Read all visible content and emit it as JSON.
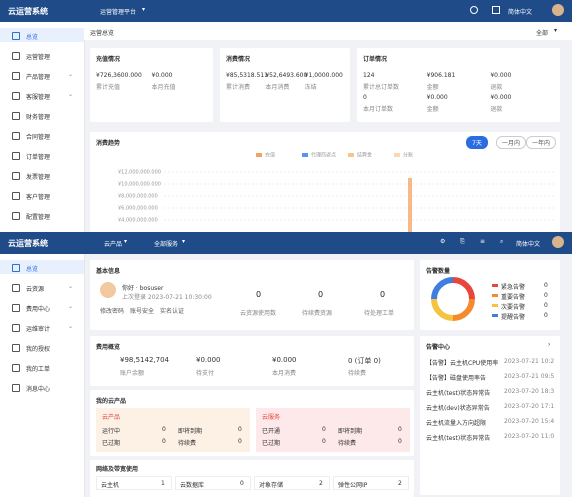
{
  "top": {
    "header": {
      "brand": "云运营系统",
      "menu": "运营管理平台",
      "lang": "简体中文"
    },
    "sidebar": [
      {
        "label": "总览",
        "active": true
      },
      {
        "label": "运营管理"
      },
      {
        "label": "产品管理",
        "submenu": true
      },
      {
        "label": "客服管理",
        "submenu": true
      },
      {
        "label": "财务管理"
      },
      {
        "label": "合同管理"
      },
      {
        "label": "订单管理"
      },
      {
        "label": "发票管理"
      },
      {
        "label": "客户管理"
      },
      {
        "label": "配置管理"
      }
    ],
    "breadcrumb": "运营总览",
    "filter": "全部",
    "recharge": {
      "title": "充值情况",
      "items": [
        {
          "value": "¥726,3600.000",
          "label": "累计充值"
        },
        {
          "value": "¥0.000",
          "label": "本月充值"
        }
      ]
    },
    "consume": {
      "title": "消费情况",
      "items": [
        {
          "value": "¥85,5318.511",
          "label": "累计消费"
        },
        {
          "value": "¥52,6493.600",
          "label": "本月消费"
        },
        {
          "value": "¥1,0000.000",
          "label": "冻结"
        }
      ]
    },
    "orders": {
      "title": "订单情况",
      "items": [
        {
          "value": "124",
          "label": "累计总订单数"
        },
        {
          "value": "¥906.181",
          "label": "金额"
        },
        {
          "value": "¥0.000",
          "label": "退款"
        },
        {
          "value": "0",
          "label": "本月订单数"
        },
        {
          "value": "¥0.000",
          "label": "金额"
        },
        {
          "value": "¥0.000",
          "label": "退款"
        }
      ]
    },
    "trend": {
      "title": "消费趋势",
      "tabs": [
        "7天",
        "一月内",
        "一年内"
      ],
      "legend": [
        {
          "name": "充值",
          "color": "#f5a25d"
        },
        {
          "name": "代理商返点",
          "color": "#5b8ff9"
        },
        {
          "name": "结算金",
          "color": "#f7c58f"
        },
        {
          "name": "分账",
          "color": "#f9d9b5"
        }
      ],
      "yticks": [
        {
          "value": 12000000,
          "label": "¥12,000,000.000"
        },
        {
          "value": 10000000,
          "label": "¥10,000,000.000"
        },
        {
          "value": 8000000,
          "label": "¥8,000,000.000"
        },
        {
          "value": 6000000,
          "label": "¥6,000,000.000"
        },
        {
          "value": 4000000,
          "label": "¥4,000,000.000"
        }
      ],
      "bar_value": 11000000,
      "bar_color": "#f7b98a"
    }
  },
  "bottom": {
    "header": {
      "brand": "云运营系统",
      "menu1": "云产品",
      "menu2": "全部服务",
      "lang": "简体中文"
    },
    "sidebar": [
      {
        "label": "总览",
        "active": true
      },
      {
        "label": "云资源",
        "submenu": true
      },
      {
        "label": "费用中心",
        "submenu": true
      },
      {
        "label": "运维审计",
        "submenu": true
      },
      {
        "label": "我的授权"
      },
      {
        "label": "我的工单"
      },
      {
        "label": "消息中心"
      }
    ],
    "basic": {
      "title": "基本信息",
      "greeting": "你好 · bosuser",
      "login": "上次登录 2023-07-21 10:30:00",
      "links": [
        "修改密码",
        "账号安全",
        "实名认证"
      ],
      "stats": [
        {
          "value": "0",
          "label": "云资源使用数"
        },
        {
          "value": "0",
          "label": "待续费资源"
        },
        {
          "value": "0",
          "label": "待处理工单"
        }
      ]
    },
    "alarm": {
      "title": "告警数量",
      "items": [
        {
          "name": "紧急告警",
          "value": "0",
          "color": "#e8453c"
        },
        {
          "name": "重要告警",
          "value": "0",
          "color": "#f58a2c"
        },
        {
          "name": "次要告警",
          "value": "0",
          "color": "#f5c342"
        },
        {
          "name": "提醒告警",
          "value": "0",
          "color": "#3f7de0"
        }
      ]
    },
    "fee": {
      "title": "费用概览",
      "items": [
        {
          "value": "¥98,5142,704",
          "label": "账户余额"
        },
        {
          "value": "¥0.000",
          "label": "待支付"
        },
        {
          "value": "¥0.000",
          "label": "本月消费"
        },
        {
          "value": "0 (订单 0)",
          "label": "待续费"
        }
      ]
    },
    "alarm_center": {
      "title": "告警中心",
      "items": [
        {
          "text": "【告警】云主机CPU使用率",
          "time": "2023-07-21 10:2"
        },
        {
          "text": "【告警】磁盘使用率告",
          "time": "2023-07-21 09:5"
        },
        {
          "text": "云主机(test)状态异常告",
          "time": "2023-07-20 18:3"
        },
        {
          "text": "云主机(dev)状态异常告",
          "time": "2023-07-20 17:1"
        },
        {
          "text": "云主机流量入方向超限",
          "time": "2023-07-20 15:4"
        },
        {
          "text": "云主机(test)状态异常告",
          "time": "2023-07-20 11:0"
        }
      ]
    },
    "products": {
      "title": "我的云产品",
      "panels": [
        {
          "title": "云产品",
          "bg": "#fdf1e6",
          "items": [
            {
              "label": "运行中",
              "value": "0"
            },
            {
              "label": "即将到期",
              "value": "0"
            },
            {
              "label": "已过期",
              "value": "0"
            },
            {
              "label": "待续费",
              "value": "0"
            }
          ]
        },
        {
          "title": "云服务",
          "bg": "#fde9ea",
          "items": [
            {
              "label": "已开通",
              "value": "0"
            },
            {
              "label": "即将到期",
              "value": "0"
            },
            {
              "label": "已过期",
              "value": "0"
            },
            {
              "label": "待续费",
              "value": "0"
            }
          ]
        }
      ]
    },
    "network": {
      "title": "网络及带宽使用",
      "items": [
        {
          "label": "云主机",
          "value": "1"
        },
        {
          "label": "云数据库",
          "value": "0"
        },
        {
          "label": "对象存储",
          "value": "2"
        },
        {
          "label": "弹性公网IP",
          "value": "2"
        }
      ]
    }
  }
}
